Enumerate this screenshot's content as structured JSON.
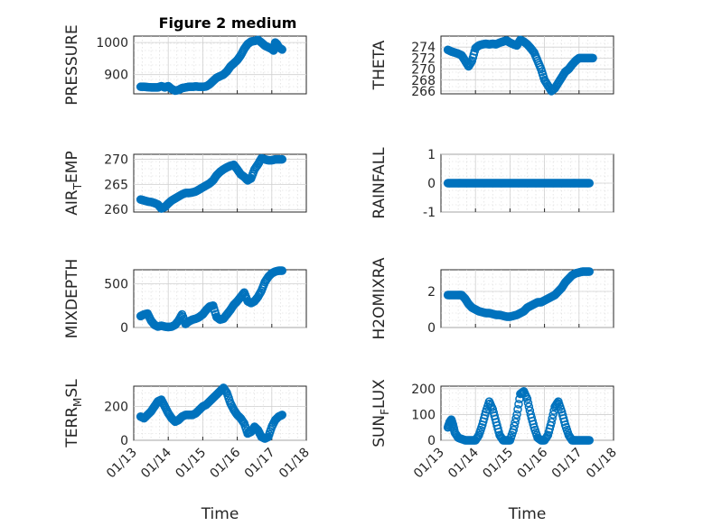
{
  "figure": {
    "title": "Figure 2 medium",
    "marker_color": "#0072BD"
  },
  "chart_data": [
    {
      "type": "scatter",
      "ylabel": "PRESSURE",
      "xlim": [
        0,
        5
      ],
      "ylim": [
        840,
        1020
      ],
      "yticks": [
        900,
        1000
      ],
      "xticks": [],
      "x": [
        0.2,
        0.3,
        0.4,
        0.5,
        0.6,
        0.7,
        0.8,
        0.9,
        1.0,
        1.1,
        1.2,
        1.3,
        1.4,
        1.5,
        1.6,
        1.7,
        1.8,
        1.9,
        2.0,
        2.1,
        2.2,
        2.3,
        2.4,
        2.5,
        2.6,
        2.7,
        2.8,
        2.9,
        3.0,
        3.1,
        3.2,
        3.3,
        3.4,
        3.5,
        3.6,
        3.7,
        3.8,
        3.9,
        4.0,
        4.05,
        4.1,
        4.15,
        4.2,
        4.3
      ],
      "y": [
        862,
        862,
        861,
        860,
        860,
        860,
        864,
        860,
        864,
        855,
        850,
        852,
        858,
        860,
        862,
        862,
        863,
        862,
        862,
        863,
        870,
        880,
        890,
        895,
        900,
        910,
        925,
        935,
        945,
        960,
        980,
        995,
        1003,
        1005,
        1008,
        1000,
        990,
        985,
        980,
        975,
        1000,
        995,
        985,
        978
      ]
    },
    {
      "type": "scatter",
      "ylabel": "THETA",
      "xlim": [
        0,
        5
      ],
      "ylim": [
        265.5,
        276
      ],
      "yticks": [
        266,
        268,
        270,
        272,
        274
      ],
      "xticks": [],
      "x": [
        0.2,
        0.3,
        0.4,
        0.5,
        0.6,
        0.7,
        0.8,
        0.9,
        1.0,
        1.1,
        1.2,
        1.3,
        1.4,
        1.5,
        1.6,
        1.7,
        1.8,
        1.9,
        2.0,
        2.1,
        2.2,
        2.3,
        2.4,
        2.5,
        2.6,
        2.7,
        2.8,
        2.9,
        3.0,
        3.1,
        3.2,
        3.3,
        3.4,
        3.5,
        3.6,
        3.7,
        3.8,
        3.9,
        4.0,
        4.1,
        4.2,
        4.3,
        4.4
      ],
      "y": [
        273.5,
        273.2,
        273.0,
        272.8,
        272.5,
        271.5,
        270.5,
        271.5,
        273.8,
        274.3,
        274.5,
        274.6,
        274.5,
        274.6,
        274.5,
        274.8,
        275.0,
        275.2,
        274.8,
        274.5,
        274.3,
        275.3,
        275.0,
        274.5,
        273.8,
        273.0,
        271.5,
        270.0,
        268.0,
        267.0,
        266.0,
        266.5,
        267.5,
        268.5,
        269.5,
        270.0,
        270.8,
        271.5,
        272.0,
        272.0,
        272.0,
        272.0,
        272.0
      ]
    },
    {
      "type": "scatter",
      "ylabel": "AIR_T_EMP",
      "xlim": [
        0,
        5
      ],
      "ylim": [
        259.5,
        271
      ],
      "yticks": [
        260,
        265,
        270
      ],
      "xticks": [],
      "x": [
        0.2,
        0.3,
        0.4,
        0.5,
        0.6,
        0.7,
        0.8,
        0.9,
        1.0,
        1.1,
        1.2,
        1.3,
        1.4,
        1.5,
        1.6,
        1.7,
        1.8,
        1.9,
        2.0,
        2.1,
        2.2,
        2.3,
        2.4,
        2.5,
        2.6,
        2.7,
        2.8,
        2.9,
        3.0,
        3.1,
        3.2,
        3.3,
        3.4,
        3.5,
        3.6,
        3.7,
        3.8,
        3.9,
        4.0,
        4.1,
        4.2,
        4.3
      ],
      "y": [
        262.0,
        261.8,
        261.6,
        261.5,
        261.3,
        261.0,
        260.2,
        260.5,
        261.2,
        261.8,
        262.2,
        262.6,
        263.0,
        263.3,
        263.3,
        263.4,
        263.6,
        264.0,
        264.4,
        264.8,
        265.2,
        265.8,
        266.8,
        267.5,
        268.0,
        268.4,
        268.7,
        268.9,
        268.0,
        267.0,
        266.5,
        265.8,
        266.2,
        268.0,
        269.0,
        270.2,
        270.0,
        269.8,
        269.8,
        270.0,
        270.0,
        270.0
      ]
    },
    {
      "type": "scatter",
      "ylabel": "RAINFALL",
      "xlim": [
        0,
        5
      ],
      "ylim": [
        -1,
        1
      ],
      "yticks": [
        -1,
        0,
        1
      ],
      "xticks": [],
      "x": [
        0.2,
        0.3,
        0.4,
        0.5,
        0.6,
        0.7,
        0.8,
        0.9,
        1.0,
        1.1,
        1.2,
        1.3,
        1.4,
        1.5,
        1.6,
        1.7,
        1.8,
        1.9,
        2.0,
        2.1,
        2.2,
        2.3,
        2.4,
        2.5,
        2.6,
        2.7,
        2.8,
        2.9,
        3.0,
        3.1,
        3.2,
        3.3,
        3.4,
        3.5,
        3.6,
        3.7,
        3.8,
        3.9,
        4.0,
        4.1,
        4.2,
        4.3
      ],
      "y": [
        0,
        0,
        0,
        0,
        0,
        0,
        0,
        0,
        0,
        0,
        0,
        0,
        0,
        0,
        0,
        0,
        0,
        0,
        0,
        0,
        0,
        0,
        0,
        0,
        0,
        0,
        0,
        0,
        0,
        0,
        0,
        0,
        0,
        0,
        0,
        0,
        0,
        0,
        0,
        0,
        0,
        0
      ]
    },
    {
      "type": "scatter",
      "ylabel": "MIXDEPTH",
      "xlim": [
        0,
        5
      ],
      "ylim": [
        0,
        660
      ],
      "yticks": [
        0,
        500
      ],
      "xticks": [],
      "x": [
        0.2,
        0.3,
        0.4,
        0.5,
        0.6,
        0.7,
        0.8,
        0.9,
        1.0,
        1.1,
        1.2,
        1.3,
        1.4,
        1.5,
        1.6,
        1.7,
        1.8,
        1.9,
        2.0,
        2.1,
        2.2,
        2.3,
        2.4,
        2.5,
        2.6,
        2.7,
        2.8,
        2.9,
        3.0,
        3.1,
        3.2,
        3.3,
        3.4,
        3.5,
        3.6,
        3.7,
        3.8,
        3.9,
        4.0,
        4.1,
        4.2,
        4.3
      ],
      "y": [
        130,
        150,
        160,
        80,
        30,
        10,
        20,
        10,
        5,
        10,
        30,
        80,
        150,
        40,
        70,
        90,
        100,
        120,
        150,
        200,
        240,
        250,
        120,
        90,
        100,
        150,
        200,
        260,
        300,
        350,
        400,
        300,
        280,
        300,
        350,
        420,
        520,
        580,
        620,
        640,
        650,
        650
      ]
    },
    {
      "type": "scatter",
      "ylabel": "H2OMIXRA",
      "xlim": [
        0,
        5
      ],
      "ylim": [
        0,
        3.2
      ],
      "yticks": [
        0,
        2
      ],
      "xticks": [],
      "x": [
        0.2,
        0.3,
        0.4,
        0.5,
        0.6,
        0.7,
        0.8,
        0.9,
        1.0,
        1.1,
        1.2,
        1.3,
        1.4,
        1.5,
        1.6,
        1.7,
        1.8,
        1.9,
        2.0,
        2.1,
        2.2,
        2.3,
        2.4,
        2.5,
        2.6,
        2.7,
        2.8,
        2.9,
        3.0,
        3.1,
        3.2,
        3.3,
        3.4,
        3.5,
        3.6,
        3.7,
        3.8,
        3.9,
        4.0,
        4.1,
        4.2,
        4.3
      ],
      "y": [
        1.8,
        1.8,
        1.8,
        1.8,
        1.8,
        1.6,
        1.3,
        1.1,
        1.0,
        0.9,
        0.85,
        0.8,
        0.8,
        0.75,
        0.7,
        0.7,
        0.65,
        0.6,
        0.6,
        0.65,
        0.7,
        0.8,
        0.9,
        1.1,
        1.2,
        1.3,
        1.4,
        1.4,
        1.5,
        1.6,
        1.7,
        1.8,
        2.0,
        2.2,
        2.5,
        2.7,
        2.9,
        3.0,
        3.05,
        3.1,
        3.1,
        3.1
      ]
    },
    {
      "type": "scatter",
      "ylabel": "TERR_M_SL",
      "xlim": [
        0,
        5
      ],
      "ylim": [
        0,
        320
      ],
      "yticks": [
        0,
        200
      ],
      "xticks": [
        "01/13",
        "01/14",
        "01/15",
        "01/16",
        "01/17",
        "01/18"
      ],
      "xlabel": "Time",
      "x": [
        0.2,
        0.3,
        0.4,
        0.5,
        0.6,
        0.7,
        0.8,
        0.9,
        1.0,
        1.1,
        1.2,
        1.3,
        1.4,
        1.5,
        1.6,
        1.7,
        1.8,
        1.9,
        2.0,
        2.1,
        2.2,
        2.3,
        2.4,
        2.5,
        2.6,
        2.7,
        2.8,
        2.9,
        3.0,
        3.1,
        3.2,
        3.3,
        3.4,
        3.5,
        3.6,
        3.7,
        3.8,
        3.9,
        4.0,
        4.1,
        4.2,
        4.3
      ],
      "y": [
        140,
        130,
        150,
        170,
        200,
        230,
        240,
        200,
        160,
        130,
        110,
        120,
        140,
        150,
        150,
        150,
        160,
        180,
        200,
        210,
        230,
        250,
        270,
        290,
        310,
        280,
        220,
        180,
        150,
        130,
        100,
        40,
        50,
        80,
        60,
        20,
        10,
        20,
        80,
        120,
        140,
        150
      ]
    },
    {
      "type": "scatter",
      "ylabel": "SUN_F_LUX",
      "xlim": [
        0,
        5
      ],
      "ylim": [
        0,
        210
      ],
      "yticks": [
        0,
        100,
        200
      ],
      "xticks": [
        "01/13",
        "01/14",
        "01/15",
        "01/16",
        "01/17",
        "01/18"
      ],
      "xlabel": "Time",
      "x": [
        0.2,
        0.25,
        0.3,
        0.35,
        0.4,
        0.5,
        0.6,
        0.7,
        0.8,
        0.9,
        1.0,
        1.1,
        1.2,
        1.3,
        1.4,
        1.5,
        1.6,
        1.7,
        1.8,
        1.9,
        2.0,
        2.1,
        2.2,
        2.3,
        2.4,
        2.5,
        2.6,
        2.7,
        2.8,
        2.9,
        3.0,
        3.1,
        3.2,
        3.3,
        3.4,
        3.5,
        3.6,
        3.7,
        3.8,
        3.9,
        4.0,
        4.1,
        4.2,
        4.3
      ],
      "y": [
        50,
        70,
        80,
        60,
        30,
        10,
        5,
        0,
        0,
        0,
        0,
        20,
        60,
        110,
        150,
        120,
        70,
        20,
        0,
        0,
        0,
        40,
        100,
        180,
        190,
        160,
        100,
        50,
        10,
        0,
        0,
        20,
        70,
        130,
        150,
        110,
        60,
        20,
        0,
        0,
        0,
        0,
        0,
        0
      ]
    }
  ]
}
